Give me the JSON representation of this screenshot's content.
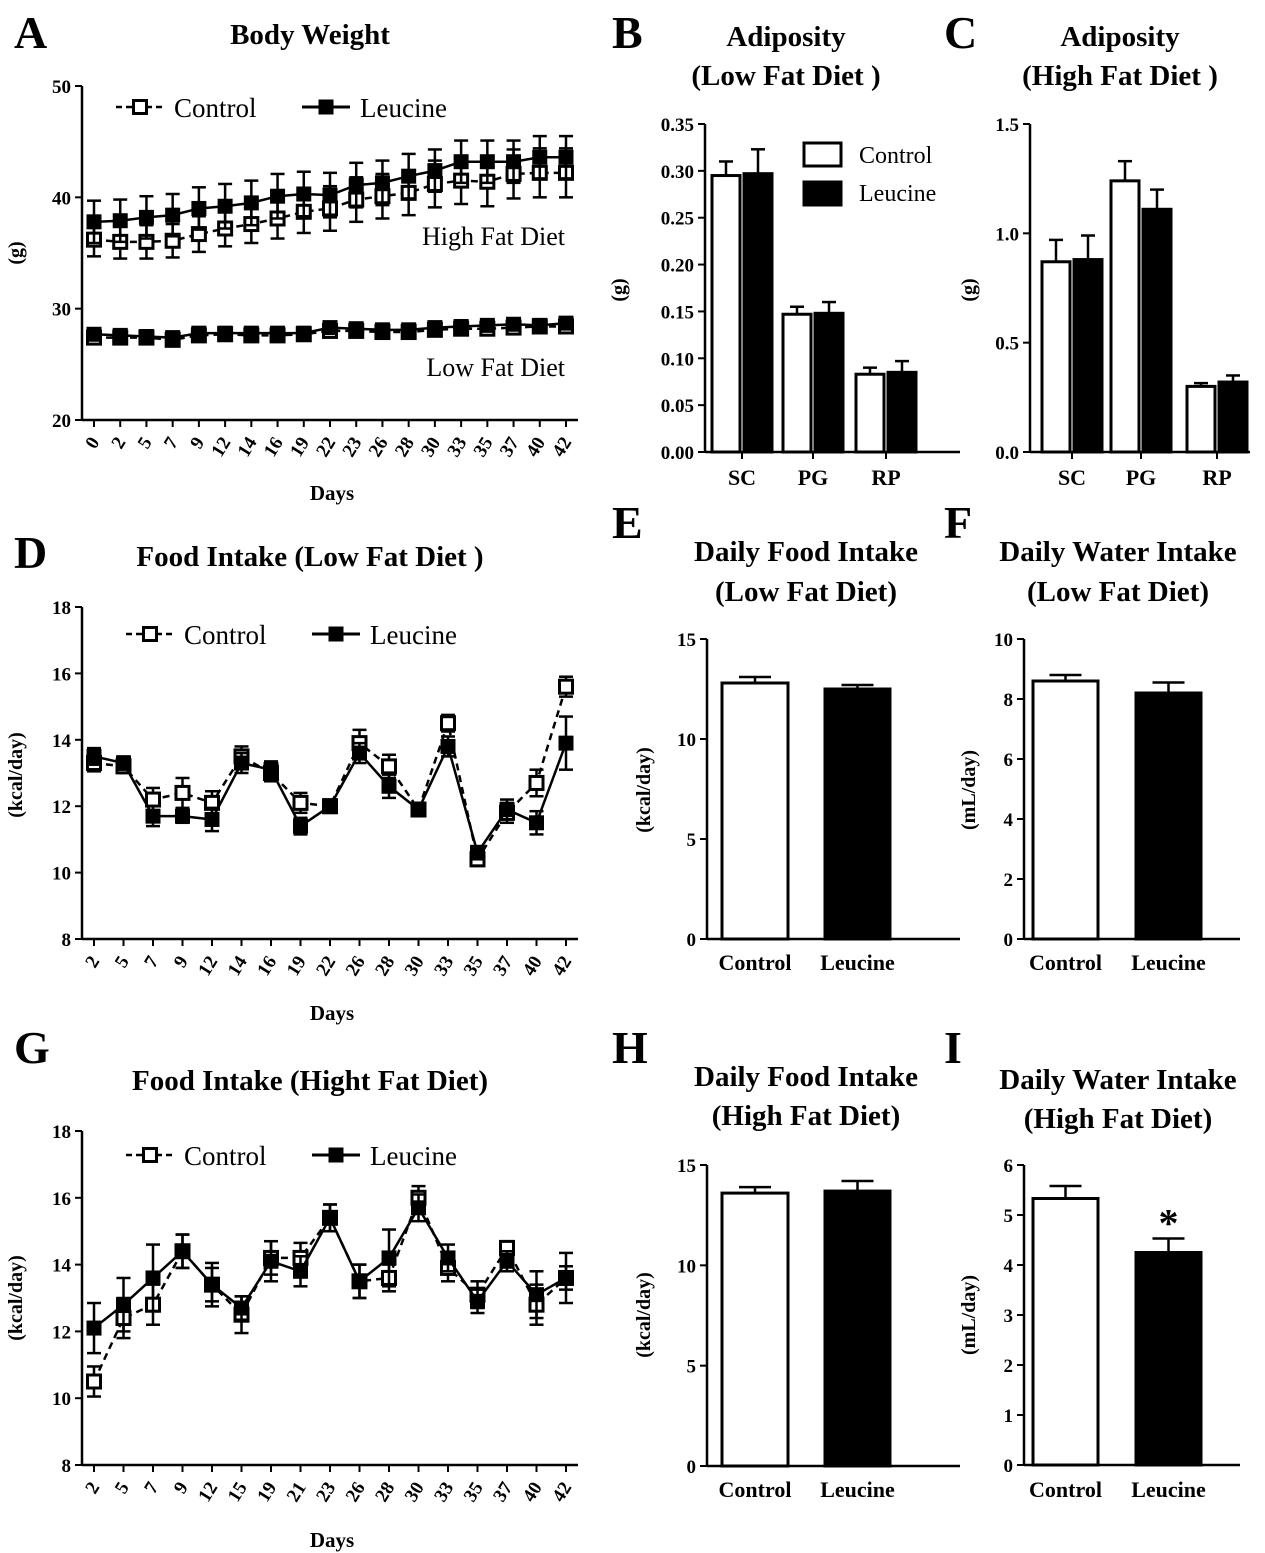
{
  "chart_data": [
    {
      "panel": "A",
      "type": "line",
      "title": "Body Weight",
      "xlabel": "Days",
      "ylabel": "(g)",
      "ylim": [
        20,
        50
      ],
      "yticks": [
        20,
        30,
        40,
        50
      ],
      "x": [
        0,
        2,
        5,
        7,
        9,
        12,
        14,
        16,
        19,
        22,
        23,
        26,
        28,
        30,
        33,
        35,
        37,
        40,
        42
      ],
      "annotations": [
        "High Fat Diet",
        "Low Fat Diet"
      ],
      "legend": {
        "position": "top-left",
        "entries": [
          "Control",
          "Leucine"
        ]
      },
      "series": [
        {
          "name": "Control",
          "group": "High Fat Diet",
          "marker": "open-square",
          "dash": true,
          "values": [
            36.2,
            36.0,
            36.0,
            36.1,
            36.7,
            37.2,
            37.6,
            38.1,
            38.7,
            39.0,
            39.8,
            40.1,
            40.4,
            41.2,
            41.5,
            41.4,
            42.1,
            42.2,
            42.2
          ],
          "error": [
            1.5,
            1.5,
            1.5,
            1.5,
            1.6,
            1.6,
            1.7,
            1.8,
            1.9,
            2.0,
            2.0,
            2.0,
            2.0,
            2.1,
            2.1,
            2.2,
            2.2,
            2.2,
            2.2
          ]
        },
        {
          "name": "Leucine",
          "group": "High Fat Diet",
          "marker": "filled-square",
          "dash": false,
          "values": [
            37.8,
            37.9,
            38.2,
            38.4,
            39.0,
            39.2,
            39.5,
            40.1,
            40.3,
            40.2,
            41.1,
            41.3,
            41.9,
            42.4,
            43.2,
            43.2,
            43.2,
            43.6,
            43.6
          ],
          "error": [
            1.9,
            1.9,
            1.9,
            1.9,
            1.9,
            2.0,
            2.0,
            2.0,
            2.0,
            2.0,
            2.0,
            2.0,
            2.0,
            1.9,
            1.9,
            1.9,
            1.9,
            1.9,
            1.9
          ]
        },
        {
          "name": "Control",
          "group": "Low Fat Diet",
          "marker": "open-square",
          "dash": true,
          "values": [
            27.4,
            27.4,
            27.4,
            27.2,
            27.6,
            27.7,
            27.6,
            27.6,
            27.7,
            28.0,
            28.0,
            27.9,
            27.9,
            28.1,
            28.2,
            28.2,
            28.3,
            28.4,
            28.4
          ],
          "error": [
            0.4,
            0.4,
            0.4,
            0.4,
            0.4,
            0.4,
            0.4,
            0.4,
            0.4,
            0.4,
            0.4,
            0.4,
            0.4,
            0.4,
            0.4,
            0.4,
            0.4,
            0.4,
            0.4
          ]
        },
        {
          "name": "Leucine",
          "group": "Low Fat Diet",
          "marker": "filled-square",
          "dash": false,
          "values": [
            27.7,
            27.6,
            27.5,
            27.4,
            27.8,
            27.8,
            27.8,
            27.8,
            27.8,
            28.3,
            28.2,
            28.1,
            28.1,
            28.3,
            28.4,
            28.5,
            28.6,
            28.5,
            28.7
          ],
          "error": [
            0.4,
            0.4,
            0.4,
            0.4,
            0.4,
            0.4,
            0.4,
            0.4,
            0.4,
            0.4,
            0.4,
            0.4,
            0.4,
            0.4,
            0.4,
            0.4,
            0.4,
            0.4,
            0.4
          ]
        }
      ]
    },
    {
      "panel": "B",
      "type": "bar",
      "title": [
        "Adiposity",
        "(Low Fat Diet )"
      ],
      "ylabel": "(g)",
      "ylim": [
        0,
        0.35
      ],
      "yticks": [
        "0.00",
        "0.05",
        "0.10",
        "0.15",
        "0.20",
        "0.25",
        "0.30",
        "0.35"
      ],
      "categories": [
        "SC",
        "PG",
        "RP"
      ],
      "legend": {
        "position": "top-right",
        "entries": [
          "Control",
          "Leucine"
        ]
      },
      "series": [
        {
          "name": "Control",
          "fill": "open",
          "values": [
            0.295,
            0.147,
            0.083
          ],
          "error": [
            0.015,
            0.008,
            0.007
          ]
        },
        {
          "name": "Leucine",
          "fill": "solid",
          "values": [
            0.297,
            0.148,
            0.085
          ],
          "error": [
            0.026,
            0.012,
            0.012
          ]
        }
      ]
    },
    {
      "panel": "C",
      "type": "bar",
      "title": [
        "Adiposity",
        "(High Fat Diet )"
      ],
      "ylabel": "(g)",
      "ylim": [
        0,
        1.5
      ],
      "yticks": [
        "0.0",
        "0.5",
        "1.0",
        "1.5"
      ],
      "categories": [
        "SC",
        "PG",
        "RP"
      ],
      "series": [
        {
          "name": "Control",
          "fill": "open",
          "values": [
            0.87,
            1.24,
            0.3
          ],
          "error": [
            0.1,
            0.09,
            0.015
          ]
        },
        {
          "name": "Leucine",
          "fill": "solid",
          "values": [
            0.88,
            1.11,
            0.32
          ],
          "error": [
            0.11,
            0.09,
            0.03
          ]
        }
      ]
    },
    {
      "panel": "D",
      "type": "line",
      "title": "Food Intake (Low Fat Diet )",
      "xlabel": "Days",
      "ylabel": "(kcal/day)",
      "ylim": [
        8,
        18
      ],
      "yticks": [
        8,
        10,
        12,
        14,
        16,
        18
      ],
      "x": [
        2,
        5,
        7,
        9,
        12,
        14,
        16,
        19,
        22,
        26,
        28,
        30,
        33,
        35,
        37,
        40,
        42
      ],
      "legend": {
        "position": "top-left",
        "entries": [
          "Control",
          "Leucine"
        ]
      },
      "series": [
        {
          "name": "Control",
          "marker": "open-square",
          "dash": true,
          "values": [
            13.3,
            13.2,
            12.2,
            12.4,
            12.1,
            13.5,
            13.0,
            12.1,
            12.0,
            13.9,
            13.2,
            11.9,
            14.5,
            10.4,
            11.8,
            12.7,
            15.6
          ],
          "error": [
            0.25,
            0.2,
            0.35,
            0.45,
            0.35,
            0.3,
            0.25,
            0.3,
            0.2,
            0.4,
            0.35,
            0.2,
            0.25,
            0.2,
            0.3,
            0.4,
            0.3
          ]
        },
        {
          "name": "Leucine",
          "marker": "filled-square",
          "dash": false,
          "values": [
            13.5,
            13.3,
            11.7,
            11.7,
            11.6,
            13.3,
            13.1,
            11.4,
            12.0,
            13.6,
            12.6,
            11.9,
            13.8,
            10.6,
            11.9,
            11.5,
            13.9
          ],
          "error": [
            0.25,
            0.2,
            0.3,
            0.2,
            0.35,
            0.3,
            0.25,
            0.25,
            0.2,
            0.3,
            0.35,
            0.2,
            0.3,
            0.2,
            0.3,
            0.35,
            0.8
          ]
        }
      ]
    },
    {
      "panel": "E",
      "type": "bar",
      "title": [
        "Daily Food Intake",
        "(Low Fat Diet)"
      ],
      "ylabel": "(kcal/day)",
      "ylim": [
        0,
        15
      ],
      "yticks": [
        0,
        5,
        10,
        15
      ],
      "categories": [
        "Control",
        "Leucine"
      ],
      "values": [
        12.8,
        12.5
      ],
      "error": [
        0.3,
        0.2
      ],
      "fills": [
        "open",
        "solid"
      ]
    },
    {
      "panel": "F",
      "type": "bar",
      "title": [
        "Daily Water Intake",
        "(Low Fat Diet)"
      ],
      "ylabel": "(mL/day)",
      "ylim": [
        0,
        10
      ],
      "yticks": [
        0,
        2,
        4,
        6,
        8,
        10
      ],
      "categories": [
        "Control",
        "Leucine"
      ],
      "values": [
        8.6,
        8.2
      ],
      "error": [
        0.2,
        0.35
      ],
      "fills": [
        "open",
        "solid"
      ]
    },
    {
      "panel": "G",
      "type": "line",
      "title": "Food Intake (Hight Fat Diet)",
      "xlabel": "Days",
      "ylabel": "(kcal/day)",
      "ylim": [
        8,
        18
      ],
      "yticks": [
        8,
        10,
        12,
        14,
        16,
        18
      ],
      "x": [
        2,
        5,
        7,
        9,
        12,
        15,
        19,
        21,
        23,
        26,
        28,
        30,
        33,
        35,
        37,
        40,
        42
      ],
      "legend": {
        "position": "top-left",
        "entries": [
          "Control",
          "Leucine"
        ]
      },
      "series": [
        {
          "name": "Control",
          "marker": "open-square",
          "dash": true,
          "values": [
            10.5,
            12.4,
            12.8,
            14.4,
            13.4,
            12.5,
            14.2,
            14.2,
            15.4,
            13.5,
            13.6,
            16.0,
            13.9,
            13.1,
            14.5,
            12.8,
            13.6
          ],
          "error": [
            0.45,
            0.6,
            0.6,
            0.5,
            0.5,
            0.55,
            0.5,
            0.45,
            0.4,
            0.5,
            0.4,
            0.35,
            0.4,
            0.4,
            0.2,
            0.6,
            0.35
          ]
        },
        {
          "name": "Leucine",
          "marker": "filled-square",
          "dash": false,
          "values": [
            12.1,
            12.8,
            13.6,
            14.4,
            13.4,
            12.7,
            14.1,
            13.8,
            15.4,
            13.5,
            14.2,
            15.7,
            14.2,
            12.9,
            14.1,
            13.1,
            13.6
          ],
          "error": [
            0.75,
            0.8,
            1.0,
            0.5,
            0.65,
            0.35,
            0.6,
            0.45,
            0.4,
            0.5,
            0.85,
            0.4,
            0.4,
            0.35,
            0.3,
            0.7,
            0.75
          ]
        }
      ]
    },
    {
      "panel": "H",
      "type": "bar",
      "title": [
        "Daily Food Intake",
        "(High Fat Diet)"
      ],
      "ylabel": "(kcal/day)",
      "ylim": [
        0,
        15
      ],
      "yticks": [
        0,
        5,
        10,
        15
      ],
      "categories": [
        "Control",
        "Leucine"
      ],
      "values": [
        13.6,
        13.7
      ],
      "error": [
        0.3,
        0.5
      ],
      "fills": [
        "open",
        "solid"
      ]
    },
    {
      "panel": "I",
      "type": "bar",
      "title": [
        "Daily Water Intake",
        "(High Fat Diet)"
      ],
      "ylabel": "(mL/day)",
      "ylim": [
        0,
        6
      ],
      "yticks": [
        0,
        1,
        2,
        3,
        4,
        5,
        6
      ],
      "categories": [
        "Control",
        "Leucine"
      ],
      "values": [
        5.33,
        4.25
      ],
      "error": [
        0.25,
        0.28
      ],
      "fills": [
        "open",
        "solid"
      ],
      "significance": "*"
    }
  ]
}
